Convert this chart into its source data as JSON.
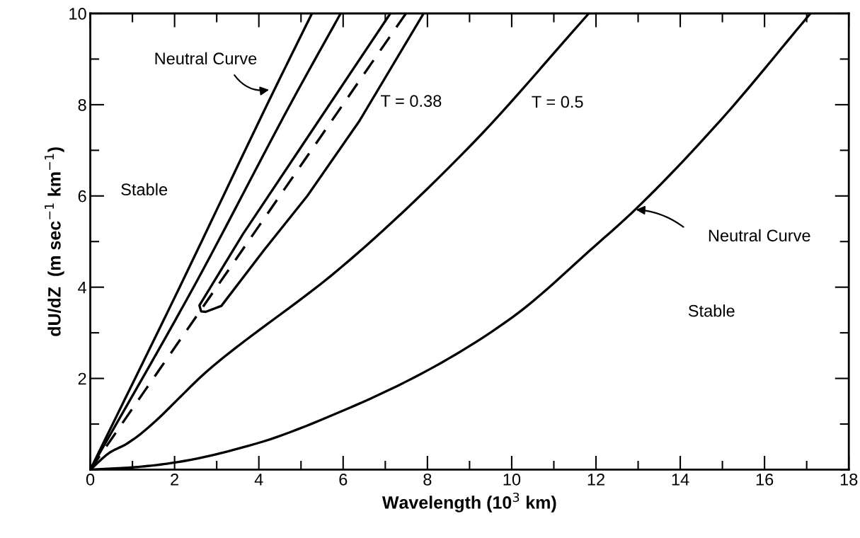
{
  "chart_data": {
    "type": "line",
    "xlabel": "Wavelength (10$^{3}$ km)",
    "ylabel": "dU/dZ  (m sec$^{−1}$ km$^{−1}$)",
    "xlim": [
      0,
      18
    ],
    "ylim": [
      0,
      10
    ],
    "xticks": [
      0,
      {
        "value": 1,
        "label": null
      },
      2,
      {
        "value": 3,
        "label": null
      },
      4,
      {
        "value": 5,
        "label": null
      },
      6,
      {
        "value": 7,
        "label": null
      },
      8,
      {
        "value": 9,
        "label": null
      },
      10,
      {
        "value": 11,
        "label": null
      },
      12,
      {
        "value": 13,
        "label": null
      },
      14,
      {
        "value": 15,
        "label": null
      },
      16,
      {
        "value": 17,
        "label": null
      },
      18
    ],
    "yticks": [
      {
        "value": 0,
        "label": null
      },
      {
        "value": 1,
        "label": null
      },
      2,
      {
        "value": 3,
        "label": null
      },
      4,
      {
        "value": 5,
        "label": null
      },
      6,
      {
        "value": 7,
        "label": null
      },
      8,
      {
        "value": 9,
        "label": null
      },
      10
    ],
    "grid": false,
    "legend": false,
    "marker": "none",
    "series": [
      {
        "color": "#000000",
        "line_style": "solid",
        "x": [
          0,
          2.12,
          4.3,
          5.26
        ],
        "values": [
          0,
          4,
          8.2,
          10
        ]
      },
      {
        "color": "#000000",
        "line_style": "solid",
        "x": [
          0,
          2.45,
          4.8,
          5.94
        ],
        "values": [
          0,
          4,
          8.1,
          10
        ]
      },
      {
        "color": "#000000",
        "line_style": "solid",
        "x": [
          7.12,
          5.08,
          3.62,
          2.59,
          2.63,
          2.74,
          3.11,
          4.13,
          5.15,
          6.39,
          7.91
        ],
        "values": [
          10,
          7.18,
          5.16,
          3.6,
          3.47,
          3.46,
          3.59,
          4.82,
          6.0,
          7.65,
          10
        ]
      },
      {
        "color": "#000000",
        "line_style": "dashed",
        "x": [
          0,
          1.21,
          2.6,
          7.49
        ],
        "values": [
          0,
          1.62,
          3.47,
          10
        ]
      },
      {
        "color": "#000000",
        "line_style": "solid",
        "x": [
          0,
          0.47,
          0.87,
          2.91,
          5.96,
          9.01,
          11.83
        ],
        "values": [
          0,
          0.38,
          0.57,
          2.27,
          4.44,
          7.09,
          10
        ]
      },
      {
        "color": "#000000",
        "line_style": "solid",
        "x": [
          0,
          0.99,
          1.89,
          3.93,
          5.96,
          7.99,
          10.03,
          11.97,
          12.93,
          14.9,
          17.09
        ],
        "values": [
          0,
          0.05,
          0.14,
          0.57,
          1.28,
          2.17,
          3.35,
          4.9,
          5.7,
          7.6,
          10
        ]
      }
    ],
    "annotations": [
      "Neutral Curve",
      "Neutral Curve",
      "Stable",
      "Stable",
      "T = 0.38",
      "T = 0.5"
    ]
  }
}
